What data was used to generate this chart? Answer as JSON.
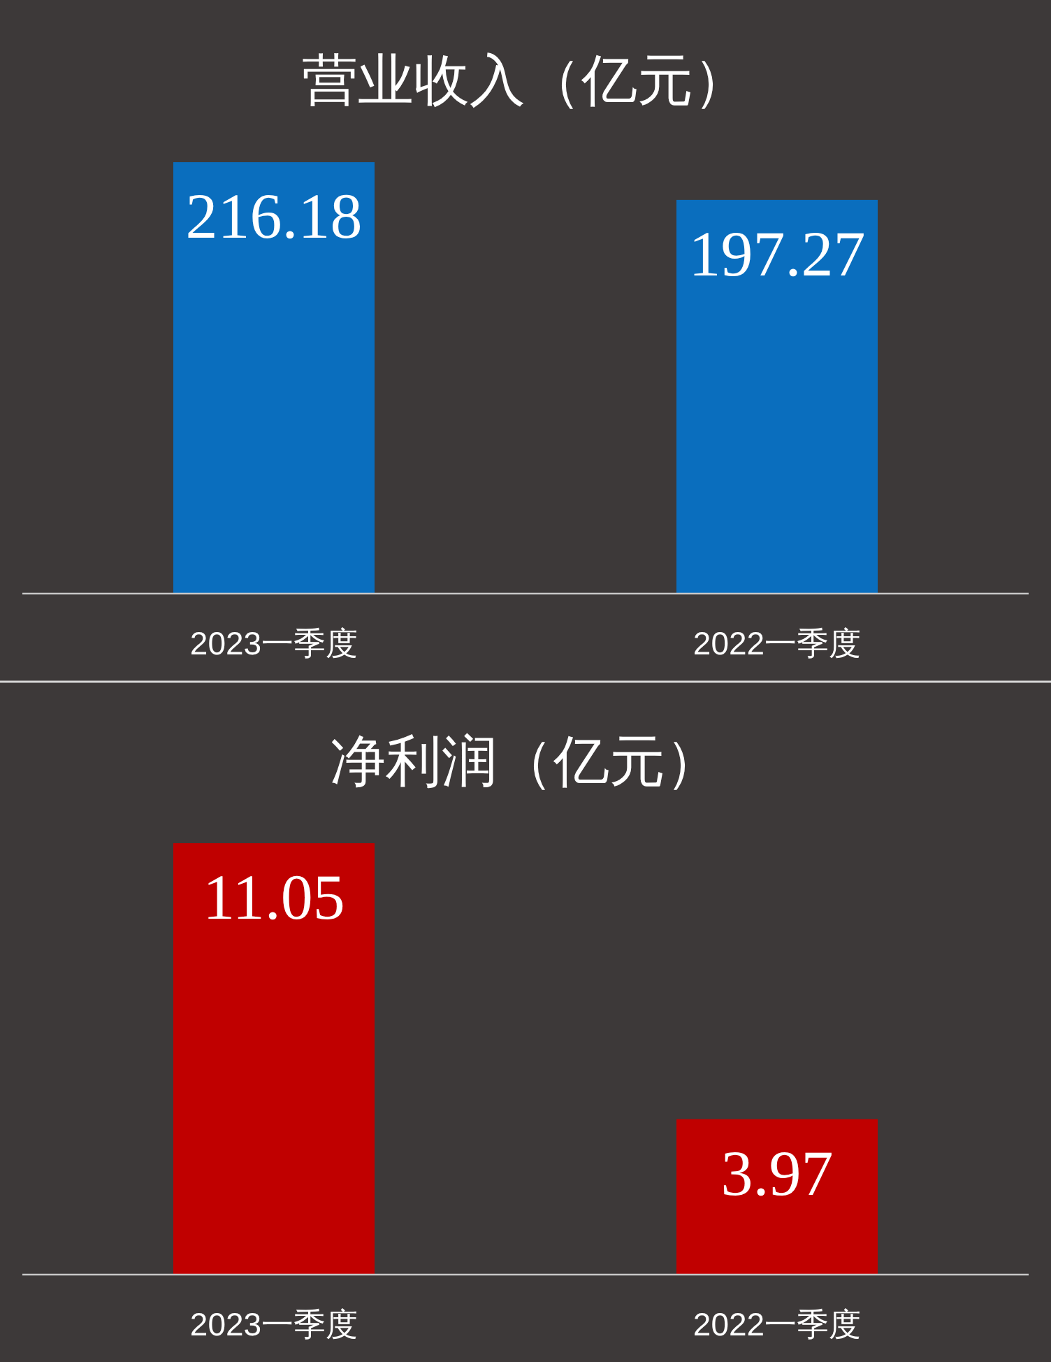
{
  "chart_data": [
    {
      "type": "bar",
      "title": "营业收入（亿元）",
      "categories": [
        "2023一季度",
        "2022一季度"
      ],
      "values": [
        216.18,
        197.27
      ],
      "color": "#0a6ebe",
      "data_labels": true
    },
    {
      "type": "bar",
      "title": "净利润（亿元）",
      "categories": [
        "2023一季度",
        "2022一季度"
      ],
      "values": [
        11.05,
        3.97
      ],
      "color": "#c00000",
      "data_labels": true
    }
  ]
}
